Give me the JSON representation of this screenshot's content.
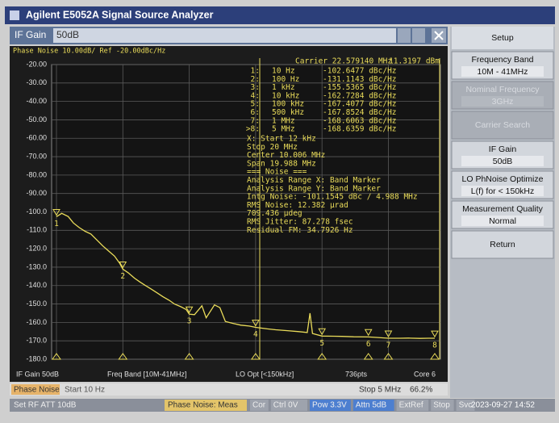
{
  "header": {
    "title": "Agilent E5052A Signal Source Analyzer"
  },
  "entry": {
    "label": "IF Gain",
    "value": "50dB"
  },
  "chart_data": {
    "type": "line",
    "title": "Phase Noise 10.00dB/ Ref -20.00dBc/Hz",
    "log_x": true,
    "grid": true,
    "color": "#eadc5a",
    "xlim": [
      10,
      5000000
    ],
    "xticks": [
      10,
      100,
      1000,
      10000,
      100000,
      1000000
    ],
    "ylim": [
      -180,
      -20
    ],
    "yticks": [
      {
        "value": -20,
        "label": "-20.00"
      },
      {
        "value": -30,
        "label": "-30.00"
      },
      {
        "value": -40,
        "label": "-40.00"
      },
      {
        "value": -50,
        "label": "-50.00"
      },
      {
        "value": -60,
        "label": "-60.00"
      },
      {
        "value": -70,
        "label": "-70.00"
      },
      {
        "value": -80,
        "label": "-80.00"
      },
      {
        "value": -90,
        "label": "-90.00"
      },
      {
        "value": -100,
        "label": "-100.0"
      },
      {
        "value": -110,
        "label": "-110.0"
      },
      {
        "value": -120,
        "label": "-120.0"
      },
      {
        "value": -130,
        "label": "-130.0"
      },
      {
        "value": -140,
        "label": "-140.0"
      },
      {
        "value": -150,
        "label": "-150.0"
      },
      {
        "value": -160,
        "label": "-160.0"
      },
      {
        "value": -170,
        "label": "-170.0"
      },
      {
        "value": -180,
        "label": "-180.0"
      }
    ],
    "x": [
      10,
      12,
      15,
      18,
      22,
      27,
      33,
      40,
      50,
      60,
      75,
      90,
      100,
      120,
      150,
      180,
      220,
      270,
      330,
      400,
      500,
      600,
      750,
      900,
      1000,
      1200,
      1550,
      1800,
      2400,
      2900,
      3500,
      4500,
      6000,
      8000,
      10000,
      15000,
      20000,
      30000,
      45000,
      60000,
      66000,
      72000,
      100000,
      150000,
      200000,
      300000,
      500000,
      700000,
      1000000,
      1500000,
      2000000,
      3000000,
      4000000,
      5000000
    ],
    "values": [
      -102.6,
      -100.8,
      -102.5,
      -106.0,
      -108.5,
      -110.5,
      -112.0,
      -115.0,
      -118.5,
      -121.0,
      -124.0,
      -128.0,
      -131.1,
      -133.0,
      -136.0,
      -138.0,
      -140.0,
      -142.0,
      -144.0,
      -146.0,
      -148.0,
      -150.0,
      -151.5,
      -153.0,
      -155.5,
      -155.8,
      -151.0,
      -157.5,
      -150.5,
      -152.0,
      -159.5,
      -160.5,
      -161.5,
      -162.0,
      -162.7,
      -163.5,
      -164.0,
      -164.5,
      -165.0,
      -165.5,
      -155.0,
      -166.0,
      -167.4,
      -167.5,
      -167.6,
      -167.8,
      -167.9,
      -168.2,
      -168.6,
      -168.6,
      -168.5,
      -168.7,
      -168.6,
      -168.6
    ],
    "carrier": "Carrier 22.579140 MHz",
    "carrier_power": "11.3197 dBm",
    "markers": [
      {
        "name": "1",
        "table_label": "1:",
        "freq": 10,
        "freq_label": "10 Hz",
        "value": -102.6477,
        "value_label": "-102.6477 dBc/Hz"
      },
      {
        "name": "2",
        "table_label": "2:",
        "freq": 100,
        "freq_label": "100 Hz",
        "value": -131.1143,
        "value_label": "-131.1143 dBc/Hz"
      },
      {
        "name": "3",
        "table_label": "3:",
        "freq": 1000,
        "freq_label": "1 kHz",
        "value": -155.5365,
        "value_label": "-155.5365 dBc/Hz"
      },
      {
        "name": "4",
        "table_label": "4:",
        "freq": 10000,
        "freq_label": "10 kHz",
        "value": -162.7284,
        "value_label": "-162.7284 dBc/Hz"
      },
      {
        "name": "5",
        "table_label": "5:",
        "freq": 100000,
        "freq_label": "100 kHz",
        "value": -167.4077,
        "value_label": "-167.4077 dBc/Hz"
      },
      {
        "name": "6",
        "table_label": "6:",
        "freq": 500000,
        "freq_label": "500 kHz",
        "value": -167.8524,
        "value_label": "-167.8524 dBc/Hz"
      },
      {
        "name": "7",
        "table_label": "7:",
        "freq": 1000000,
        "freq_label": "1 MHz",
        "value": -168.6063,
        "value_label": "-168.6063 dBc/Hz"
      },
      {
        "name": "8",
        "table_label": ">8:",
        "freq": 5000000,
        "freq_label": "5 MHz",
        "value": -168.6359,
        "value_label": "-168.6359 dBc/Hz"
      }
    ],
    "annotations": [
      "X: Start 12 kHz",
      "Stop 20 MHz",
      "Center 10.006 MHz",
      "Span 19.988 MHz",
      "=== Noise ===",
      "Analysis Range X: Band Marker",
      "Analysis Range Y: Band Marker",
      "Intg Noise: -101.1545 dBc / 4.988 MHz",
      "RMS Noise: 12.382 µrad",
      "709.436 µdeg",
      "RMS Jitter: 87.278 fsec",
      "Residual FM: 34.7926 Hz"
    ]
  },
  "plot_footer": [
    "IF Gain 50dB",
    "Freq Band [10M-41MHz]",
    "LO Opt [<150kHz]",
    "736pts",
    "Core 6"
  ],
  "sweep": {
    "mode": "Phase Noise",
    "start": "Start 10 Hz",
    "stop": "Stop 5 MHz",
    "progress": "66.2%"
  },
  "softkeys": {
    "header": "Setup",
    "keys": [
      {
        "label": "Frequency Band",
        "value": "10M - 41MHz"
      },
      {
        "label": "Nominal Frequency",
        "value": "3GHz"
      },
      {
        "label": "Carrier Search"
      },
      {
        "label": "IF Gain",
        "value": "50dB"
      },
      {
        "label": "LO PhNoise Optimize",
        "value": "L(f) for < 150kHz"
      },
      {
        "label": "Measurement Quality",
        "value": "Normal"
      },
      {
        "label": "Return"
      }
    ]
  },
  "status": {
    "message": "Set RF ATT 10dB",
    "meas": "Phase Noise: Meas",
    "flags": [
      "Cor",
      "Ctrl 0V",
      "Pow 3.3V",
      "Attn 5dB",
      "ExtRef",
      "Stop",
      "Svc"
    ],
    "datetime": "2023-09-27 14:52"
  }
}
